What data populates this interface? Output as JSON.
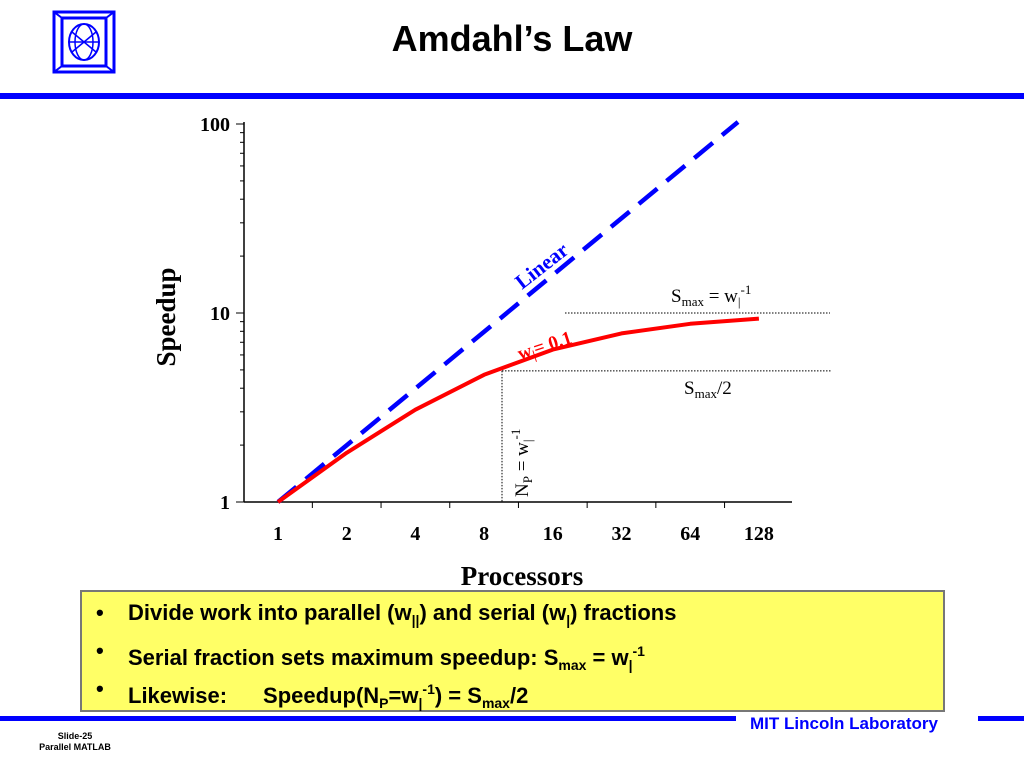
{
  "slide": {
    "title": "Amdahl’s Law",
    "footer_org": "MIT Lincoln Laboratory",
    "slide_number": "Slide-25",
    "deck_name": "Parallel MATLAB",
    "colors": {
      "accent_blue": "#0000ff",
      "red": "#ff0000",
      "highlight": "#ffff66"
    },
    "logo_icon": "lincoln-lab-logo-icon"
  },
  "chart_data": {
    "type": "line",
    "xlabel": "Processors",
    "ylabel": "Speedup",
    "xscale": "log2",
    "yscale": "log10",
    "x_ticks": [
      1,
      2,
      4,
      8,
      16,
      32,
      64,
      128
    ],
    "y_ticks": [
      1,
      10,
      100
    ],
    "xlim": [
      1,
      128
    ],
    "ylim": [
      1,
      100
    ],
    "series": [
      {
        "name": "Linear",
        "style": "dashed",
        "color": "#0000ff",
        "x": [
          1,
          100
        ],
        "y": [
          1,
          100
        ]
      },
      {
        "name": "w| = 0.1",
        "style": "solid",
        "color": "#ff0000",
        "x": [
          1,
          2,
          4,
          8,
          16,
          32,
          64,
          128
        ],
        "y": [
          1.0,
          1.82,
          3.08,
          4.71,
          6.4,
          7.8,
          8.77,
          9.34
        ]
      }
    ],
    "reference_lines": [
      {
        "kind": "horizontal",
        "y": 10,
        "label_base": "S",
        "label_sub": "max",
        "label_tail": " = w",
        "label_sub2": "|",
        "label_sup": "-1"
      },
      {
        "kind": "horizontal",
        "y": 5,
        "label_base": "S",
        "label_sub": "max",
        "label_tail": "/2"
      },
      {
        "kind": "vertical",
        "x": 10,
        "label_base": "N",
        "label_sub": "P",
        "label_tail": " = w",
        "label_sub2": "|",
        "label_sup": "-1"
      }
    ],
    "linear_label": "Linear",
    "curve_label_base": "w",
    "curve_label_sub": "|",
    "curve_label_tail": "= 0.1"
  },
  "bullets": [
    {
      "text": "Divide work into parallel (w",
      "sub": "||",
      "text2": ") and serial (w",
      "sub2": "|",
      "text3": ") fractions"
    },
    {
      "text": "Serial fraction sets maximum speedup:  S",
      "sub": "max",
      "text2": " = w",
      "sub2": "|",
      "sup": "-1"
    },
    {
      "text": "Likewise:",
      "text2": "Speedup(N",
      "sub": "P",
      "text3": "=w",
      "sub2": "|",
      "sup": "-1",
      "text4": ") = S",
      "sub3": "max",
      "text5": "/2"
    }
  ]
}
